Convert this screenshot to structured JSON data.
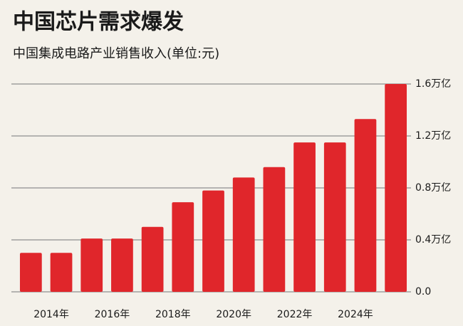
{
  "chart_data": {
    "type": "bar",
    "title": "中国芯片需求爆发",
    "subtitle": "中国集成电路产业销售收入(单位:元)",
    "categories": [
      null,
      "2014年",
      null,
      "2016年",
      null,
      "2018年",
      null,
      "2020年",
      null,
      "2022年",
      null,
      "2024年",
      null
    ],
    "values": [
      0.3,
      0.3,
      0.41,
      0.41,
      0.5,
      0.69,
      0.78,
      0.88,
      0.96,
      1.15,
      1.15,
      1.33,
      1.6
    ],
    "color": "#e0262b",
    "ylim": [
      0,
      1.6
    ],
    "yticks": [
      {
        "value": 0,
        "label": "0.0"
      },
      {
        "value": 0.4,
        "label": "0.4万亿"
      },
      {
        "value": 0.8,
        "label": "0.8万亿"
      },
      {
        "value": 1.2,
        "label": "1.2万亿"
      },
      {
        "value": 1.6,
        "label": "1.6万亿"
      }
    ],
    "grid": true
  }
}
